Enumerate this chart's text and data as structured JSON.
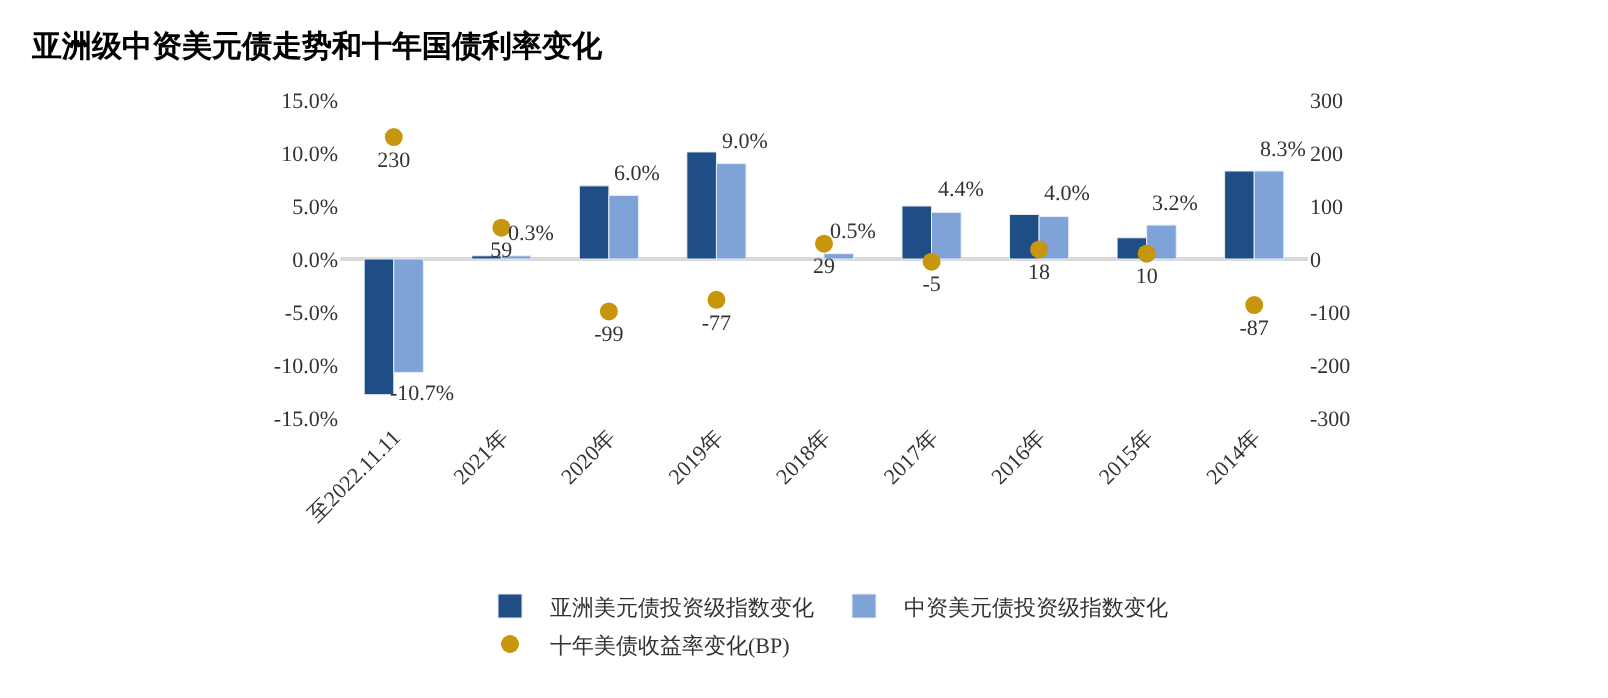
{
  "chart_data": {
    "type": "bar",
    "title": "亚洲级中资美元债走势和十年国债利率变化",
    "categories": [
      "至2022.11.11",
      "2021年",
      "2020年",
      "2019年",
      "2018年",
      "2017年",
      "2016年",
      "2015年",
      "2014年"
    ],
    "series": [
      {
        "name": "亚洲美元债投资级指数变化",
        "color": "#1f4e87",
        "values": [
          -12.8,
          0.3,
          6.9,
          10.1,
          null,
          5.0,
          4.2,
          2.0,
          8.3
        ]
      },
      {
        "name": "中资美元债投资级指数变化",
        "color": "#7fa3d6",
        "values": [
          -10.7,
          0.3,
          6.0,
          9.0,
          0.5,
          4.4,
          4.0,
          3.2,
          8.3
        ],
        "value_labels": [
          "-10.7%",
          "0.3%",
          "6.0%",
          "9.0%",
          "0.5%",
          "4.4%",
          "4.0%",
          "3.2%",
          "8.3%"
        ]
      },
      {
        "name": "十年美债收益率变化(BP)",
        "type": "scatter",
        "axis": "y2",
        "color": "#c8960c",
        "values": [
          230,
          59,
          -99,
          -77,
          29,
          -5,
          18,
          10,
          -87
        ],
        "value_labels": [
          "230",
          "59",
          "-99",
          "-77",
          "29",
          "-5",
          "18",
          "10",
          "-87"
        ]
      }
    ],
    "ylim": [
      -15,
      15
    ],
    "yticks": [
      {
        "value": -15,
        "label": "-15.0%"
      },
      {
        "value": -10,
        "label": "-10.0%"
      },
      {
        "value": -5,
        "label": "-5.0%"
      },
      {
        "value": 0,
        "label": "0.0%"
      },
      {
        "value": 5,
        "label": "5.0%"
      },
      {
        "value": 10,
        "label": "10.0%"
      },
      {
        "value": 15,
        "label": "15.0%"
      }
    ],
    "y2lim": [
      -300,
      300
    ],
    "y2ticks": [
      -300,
      -200,
      -100,
      0,
      100,
      200,
      300
    ],
    "ref_lines": [
      {
        "axis": "y",
        "value": 0,
        "color": "#d9d9d9"
      }
    ],
    "legend": "bottom",
    "grid": false,
    "marker": "circle"
  }
}
